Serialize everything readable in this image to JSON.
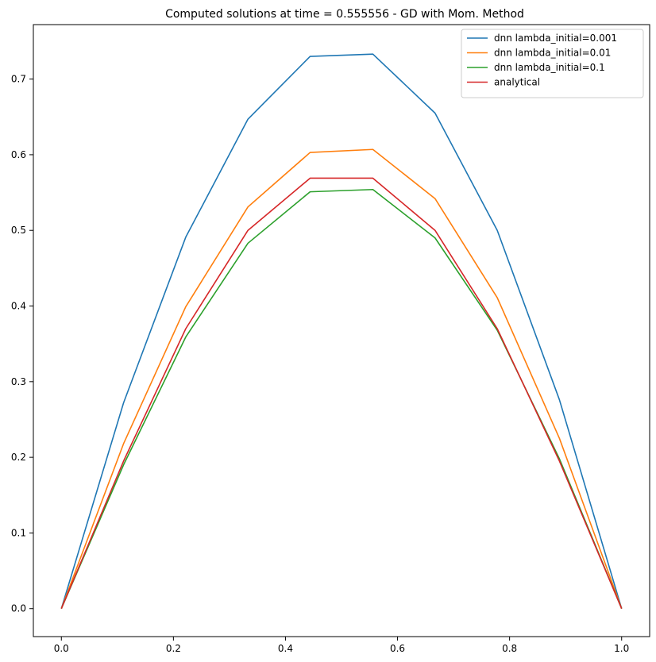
{
  "chart_data": {
    "type": "line",
    "title": "Computed solutions at time = 0.555556 - GD with Mom. Method",
    "xlabel": "",
    "ylabel": "",
    "xlim": [
      -0.05,
      1.05
    ],
    "ylim": [
      -0.037,
      0.772
    ],
    "x_ticks": [
      0.0,
      0.2,
      0.4,
      0.6,
      0.8,
      1.0
    ],
    "x_tick_labels": [
      "0.0",
      "0.2",
      "0.4",
      "0.6",
      "0.8",
      "1.0"
    ],
    "y_ticks": [
      0.0,
      0.1,
      0.2,
      0.3,
      0.4,
      0.5,
      0.6,
      0.7
    ],
    "y_tick_labels": [
      "0.0",
      "0.1",
      "0.2",
      "0.3",
      "0.4",
      "0.5",
      "0.6",
      "0.7"
    ],
    "grid": false,
    "legend_position": "top-right",
    "x": [
      0.0,
      0.111,
      0.222,
      0.333,
      0.444,
      0.556,
      0.667,
      0.778,
      0.889,
      1.0
    ],
    "series": [
      {
        "name": "dnn lambda_initial=0.001",
        "color": "#1f77b4",
        "values": [
          0.0,
          0.272,
          0.491,
          0.647,
          0.73,
          0.733,
          0.655,
          0.5,
          0.276,
          0.0
        ]
      },
      {
        "name": "dnn lambda_initial=0.01",
        "color": "#ff7f0e",
        "values": [
          0.0,
          0.218,
          0.399,
          0.531,
          0.603,
          0.607,
          0.542,
          0.411,
          0.225,
          0.0
        ]
      },
      {
        "name": "dnn lambda_initial=0.1",
        "color": "#2ca02c",
        "values": [
          0.0,
          0.19,
          0.359,
          0.483,
          0.551,
          0.554,
          0.49,
          0.368,
          0.198,
          0.0
        ]
      },
      {
        "name": "analytical",
        "color": "#d62728",
        "values": [
          0.0,
          0.195,
          0.37,
          0.5,
          0.569,
          0.569,
          0.5,
          0.37,
          0.195,
          0.0
        ]
      }
    ]
  }
}
